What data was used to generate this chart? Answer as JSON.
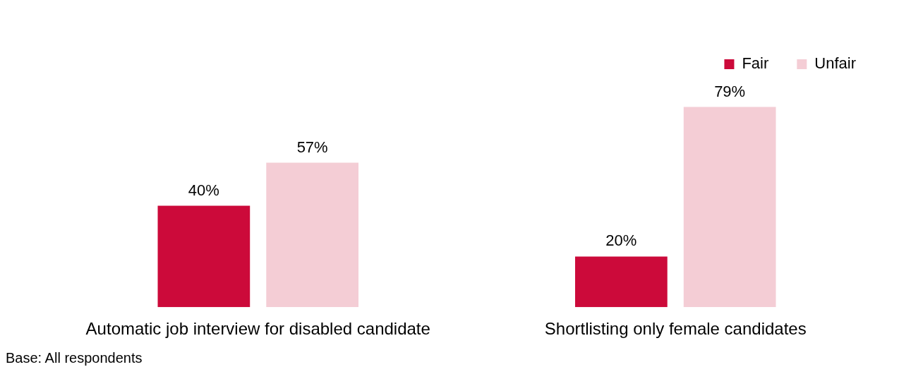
{
  "chart_data": {
    "type": "bar",
    "categories": [
      "Automatic job interview for disabled candidate",
      "Shortlisting only female candidates"
    ],
    "series": [
      {
        "name": "Fair",
        "color": "#cc0a3a",
        "values": [
          40,
          20
        ],
        "value_labels": [
          "40%",
          "20%"
        ]
      },
      {
        "name": "Unfair",
        "color": "#f4cdd5",
        "values": [
          57,
          79
        ],
        "value_labels": [
          "57%",
          "79%"
        ]
      }
    ],
    "legend": "top right",
    "grid": false,
    "tick_labels": "x",
    "annotations": [
      "Base: All respondents"
    ]
  }
}
